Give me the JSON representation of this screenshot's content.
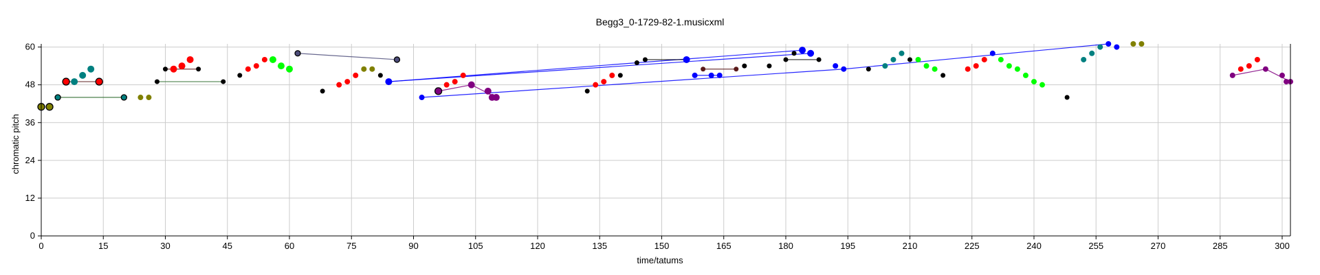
{
  "chart_data": {
    "type": "scatter",
    "title": "Begg3_0-1729-82-1.musicxml",
    "xlabel": "time/tatums",
    "ylabel": "chromatic pitch",
    "xlim": [
      0,
      302
    ],
    "ylim": [
      0,
      61
    ],
    "xticks": [
      0,
      15,
      30,
      45,
      60,
      75,
      90,
      105,
      120,
      135,
      150,
      165,
      180,
      195,
      210,
      225,
      240,
      255,
      270,
      285,
      300
    ],
    "yticks": [
      0,
      12,
      24,
      36,
      48,
      60
    ],
    "grid": true,
    "colors": {
      "olive": "#808000",
      "black": "#000000",
      "teal": "#008080",
      "red": "#ff0000",
      "green": "#00ff00",
      "blue": "#0000ff",
      "slate": "#4d4d7a",
      "purple": "#800080",
      "darkgreen": "#2e6b2e",
      "maroon": "#5a1a1a"
    },
    "points": [
      {
        "x": 0,
        "y": 41,
        "c": "olive",
        "s": 5,
        "ring": true
      },
      {
        "x": 2,
        "y": 41,
        "c": "olive",
        "s": 5,
        "ring": true
      },
      {
        "x": 4,
        "y": 44,
        "c": "teal",
        "s": 4,
        "ring": true
      },
      {
        "x": 6,
        "y": 49,
        "c": "red",
        "s": 5,
        "ring": true
      },
      {
        "x": 8,
        "y": 49,
        "c": "teal",
        "s": 5
      },
      {
        "x": 10,
        "y": 51,
        "c": "teal",
        "s": 5
      },
      {
        "x": 12,
        "y": 53,
        "c": "teal",
        "s": 5
      },
      {
        "x": 14,
        "y": 49,
        "c": "red",
        "s": 5,
        "ring": true
      },
      {
        "x": 20,
        "y": 44,
        "c": "teal",
        "s": 4,
        "ring": true
      },
      {
        "x": 24,
        "y": 44,
        "c": "olive",
        "s": 4
      },
      {
        "x": 26,
        "y": 44,
        "c": "olive",
        "s": 4
      },
      {
        "x": 28,
        "y": 49,
        "c": "black",
        "s": 3.5
      },
      {
        "x": 30,
        "y": 53,
        "c": "black",
        "s": 3.5
      },
      {
        "x": 32,
        "y": 53,
        "c": "red",
        "s": 5
      },
      {
        "x": 34,
        "y": 54,
        "c": "red",
        "s": 5
      },
      {
        "x": 36,
        "y": 56,
        "c": "red",
        "s": 5
      },
      {
        "x": 38,
        "y": 53,
        "c": "black",
        "s": 3.5
      },
      {
        "x": 44,
        "y": 49,
        "c": "black",
        "s": 3.5
      },
      {
        "x": 48,
        "y": 51,
        "c": "black",
        "s": 3.5
      },
      {
        "x": 50,
        "y": 53,
        "c": "red",
        "s": 4
      },
      {
        "x": 52,
        "y": 54,
        "c": "red",
        "s": 4
      },
      {
        "x": 54,
        "y": 56,
        "c": "red",
        "s": 4
      },
      {
        "x": 56,
        "y": 56,
        "c": "green",
        "s": 5
      },
      {
        "x": 58,
        "y": 54,
        "c": "green",
        "s": 5
      },
      {
        "x": 60,
        "y": 53,
        "c": "green",
        "s": 5
      },
      {
        "x": 62,
        "y": 58,
        "c": "slate",
        "s": 4,
        "ring": true
      },
      {
        "x": 68,
        "y": 46,
        "c": "black",
        "s": 3.5
      },
      {
        "x": 72,
        "y": 48,
        "c": "red",
        "s": 4
      },
      {
        "x": 74,
        "y": 49,
        "c": "red",
        "s": 4
      },
      {
        "x": 76,
        "y": 51,
        "c": "red",
        "s": 4
      },
      {
        "x": 78,
        "y": 53,
        "c": "olive",
        "s": 4
      },
      {
        "x": 80,
        "y": 53,
        "c": "olive",
        "s": 4
      },
      {
        "x": 82,
        "y": 51,
        "c": "black",
        "s": 3.5
      },
      {
        "x": 84,
        "y": 49,
        "c": "blue",
        "s": 5
      },
      {
        "x": 86,
        "y": 56,
        "c": "slate",
        "s": 4,
        "ring": true
      },
      {
        "x": 92,
        "y": 44,
        "c": "blue",
        "s": 4
      },
      {
        "x": 96,
        "y": 46,
        "c": "purple",
        "s": 5,
        "ring": true
      },
      {
        "x": 98,
        "y": 48,
        "c": "red",
        "s": 4
      },
      {
        "x": 100,
        "y": 49,
        "c": "red",
        "s": 4
      },
      {
        "x": 102,
        "y": 51,
        "c": "red",
        "s": 4
      },
      {
        "x": 104,
        "y": 48,
        "c": "purple",
        "s": 5
      },
      {
        "x": 108,
        "y": 46,
        "c": "purple",
        "s": 5
      },
      {
        "x": 109,
        "y": 44,
        "c": "purple",
        "s": 5
      },
      {
        "x": 110,
        "y": 44,
        "c": "purple",
        "s": 5
      },
      {
        "x": 132,
        "y": 46,
        "c": "black",
        "s": 3.5
      },
      {
        "x": 134,
        "y": 48,
        "c": "red",
        "s": 4
      },
      {
        "x": 136,
        "y": 49,
        "c": "red",
        "s": 4
      },
      {
        "x": 138,
        "y": 51,
        "c": "red",
        "s": 4
      },
      {
        "x": 140,
        "y": 51,
        "c": "black",
        "s": 3.5
      },
      {
        "x": 144,
        "y": 55,
        "c": "black",
        "s": 3.5
      },
      {
        "x": 146,
        "y": 56,
        "c": "black",
        "s": 3.5
      },
      {
        "x": 156,
        "y": 56,
        "c": "blue",
        "s": 5
      },
      {
        "x": 158,
        "y": 51,
        "c": "blue",
        "s": 4
      },
      {
        "x": 160,
        "y": 53,
        "c": "maroon",
        "s": 3.5
      },
      {
        "x": 162,
        "y": 51,
        "c": "blue",
        "s": 4
      },
      {
        "x": 164,
        "y": 51,
        "c": "blue",
        "s": 4
      },
      {
        "x": 168,
        "y": 53,
        "c": "maroon",
        "s": 3.5
      },
      {
        "x": 170,
        "y": 54,
        "c": "black",
        "s": 3.5
      },
      {
        "x": 176,
        "y": 54,
        "c": "black",
        "s": 3.5
      },
      {
        "x": 180,
        "y": 56,
        "c": "black",
        "s": 3.5
      },
      {
        "x": 182,
        "y": 58,
        "c": "black",
        "s": 3.5
      },
      {
        "x": 184,
        "y": 59,
        "c": "blue",
        "s": 5
      },
      {
        "x": 186,
        "y": 58,
        "c": "blue",
        "s": 5
      },
      {
        "x": 188,
        "y": 56,
        "c": "black",
        "s": 3.5
      },
      {
        "x": 192,
        "y": 54,
        "c": "blue",
        "s": 4
      },
      {
        "x": 194,
        "y": 53,
        "c": "blue",
        "s": 4
      },
      {
        "x": 200,
        "y": 53,
        "c": "black",
        "s": 3.5
      },
      {
        "x": 204,
        "y": 54,
        "c": "teal",
        "s": 4
      },
      {
        "x": 206,
        "y": 56,
        "c": "teal",
        "s": 4
      },
      {
        "x": 208,
        "y": 58,
        "c": "teal",
        "s": 4
      },
      {
        "x": 210,
        "y": 56,
        "c": "black",
        "s": 3.5
      },
      {
        "x": 212,
        "y": 56,
        "c": "green",
        "s": 4
      },
      {
        "x": 214,
        "y": 54,
        "c": "green",
        "s": 4
      },
      {
        "x": 216,
        "y": 53,
        "c": "green",
        "s": 4
      },
      {
        "x": 218,
        "y": 51,
        "c": "black",
        "s": 3.5
      },
      {
        "x": 224,
        "y": 53,
        "c": "red",
        "s": 4
      },
      {
        "x": 226,
        "y": 54,
        "c": "red",
        "s": 4
      },
      {
        "x": 228,
        "y": 56,
        "c": "red",
        "s": 4
      },
      {
        "x": 230,
        "y": 58,
        "c": "blue",
        "s": 4
      },
      {
        "x": 232,
        "y": 56,
        "c": "green",
        "s": 4
      },
      {
        "x": 234,
        "y": 54,
        "c": "green",
        "s": 4
      },
      {
        "x": 236,
        "y": 53,
        "c": "green",
        "s": 4
      },
      {
        "x": 238,
        "y": 51,
        "c": "green",
        "s": 4
      },
      {
        "x": 240,
        "y": 49,
        "c": "green",
        "s": 4
      },
      {
        "x": 242,
        "y": 48,
        "c": "green",
        "s": 4
      },
      {
        "x": 248,
        "y": 44,
        "c": "black",
        "s": 3.5
      },
      {
        "x": 252,
        "y": 56,
        "c": "teal",
        "s": 4
      },
      {
        "x": 254,
        "y": 58,
        "c": "teal",
        "s": 4
      },
      {
        "x": 256,
        "y": 60,
        "c": "teal",
        "s": 4
      },
      {
        "x": 258,
        "y": 61,
        "c": "blue",
        "s": 4
      },
      {
        "x": 260,
        "y": 60,
        "c": "blue",
        "s": 4
      },
      {
        "x": 264,
        "y": 61,
        "c": "olive",
        "s": 4
      },
      {
        "x": 266,
        "y": 61,
        "c": "olive",
        "s": 4
      },
      {
        "x": 288,
        "y": 51,
        "c": "purple",
        "s": 4
      },
      {
        "x": 290,
        "y": 53,
        "c": "red",
        "s": 4
      },
      {
        "x": 292,
        "y": 54,
        "c": "red",
        "s": 4
      },
      {
        "x": 294,
        "y": 56,
        "c": "red",
        "s": 4
      },
      {
        "x": 296,
        "y": 53,
        "c": "purple",
        "s": 4
      },
      {
        "x": 300,
        "y": 51,
        "c": "purple",
        "s": 4
      },
      {
        "x": 301,
        "y": 49,
        "c": "purple",
        "s": 4
      },
      {
        "x": 302,
        "y": 49,
        "c": "purple",
        "s": 4
      }
    ],
    "links": [
      {
        "from": [
          4,
          44
        ],
        "to": [
          20,
          44
        ],
        "c": "darkgreen"
      },
      {
        "from": [
          6,
          49
        ],
        "to": [
          14,
          49
        ],
        "c": "maroon"
      },
      {
        "from": [
          28,
          49
        ],
        "to": [
          44,
          49
        ],
        "c": "darkgreen"
      },
      {
        "from": [
          30,
          53
        ],
        "to": [
          38,
          53
        ],
        "c": "maroon"
      },
      {
        "from": [
          62,
          58
        ],
        "to": [
          86,
          56
        ],
        "c": "slate"
      },
      {
        "from": [
          84,
          49
        ],
        "to": [
          184,
          59
        ],
        "c": "blue"
      },
      {
        "from": [
          84,
          49
        ],
        "to": [
          186,
          58
        ],
        "c": "blue"
      },
      {
        "from": [
          92,
          44
        ],
        "to": [
          194,
          53
        ],
        "c": "blue"
      },
      {
        "from": [
          96,
          46
        ],
        "to": [
          104,
          48
        ],
        "c": "purple"
      },
      {
        "from": [
          104,
          48
        ],
        "to": [
          110,
          44
        ],
        "c": "purple"
      },
      {
        "from": [
          146,
          56
        ],
        "to": [
          156,
          56
        ],
        "c": "black"
      },
      {
        "from": [
          158,
          51
        ],
        "to": [
          164,
          51
        ],
        "c": "blue"
      },
      {
        "from": [
          160,
          53
        ],
        "to": [
          168,
          53
        ],
        "c": "maroon"
      },
      {
        "from": [
          180,
          56
        ],
        "to": [
          188,
          56
        ],
        "c": "black"
      },
      {
        "from": [
          194,
          53
        ],
        "to": [
          258,
          61
        ],
        "c": "blue"
      },
      {
        "from": [
          288,
          51
        ],
        "to": [
          296,
          53
        ],
        "c": "purple"
      },
      {
        "from": [
          296,
          53
        ],
        "to": [
          302,
          49
        ],
        "c": "purple"
      }
    ]
  }
}
